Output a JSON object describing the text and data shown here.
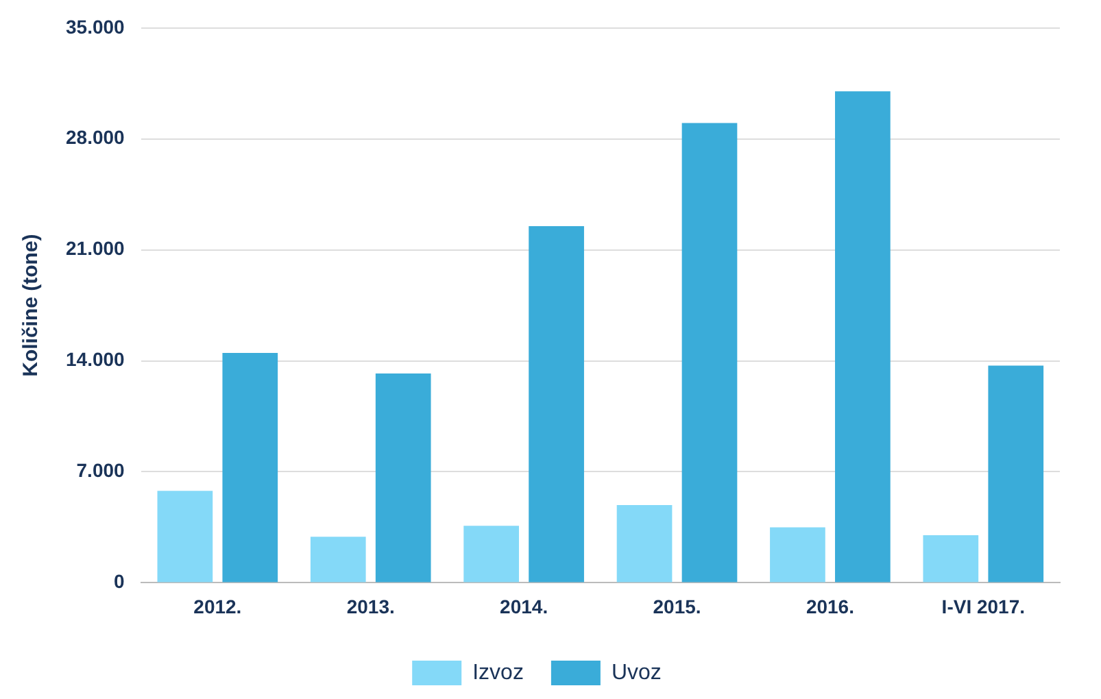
{
  "chart_data": {
    "type": "bar",
    "ylabel": "Količine (tone)",
    "categories": [
      "2012.",
      "2013.",
      "2014.",
      "2015.",
      "2016.",
      "I-VI 2017."
    ],
    "series": [
      {
        "name": "Izvoz",
        "color": "#84d9f8",
        "values": [
          5800,
          2900,
          3600,
          4900,
          3500,
          3000
        ]
      },
      {
        "name": "Uvoz",
        "color": "#3aacd9",
        "values": [
          14500,
          13200,
          22500,
          29000,
          31000,
          13700
        ]
      }
    ],
    "ylim": [
      0,
      35000
    ],
    "yticks": [
      {
        "value": 0,
        "label": "0"
      },
      {
        "value": 7000,
        "label": "7.000"
      },
      {
        "value": 14000,
        "label": "14.000"
      },
      {
        "value": 21000,
        "label": "21.000"
      },
      {
        "value": 28000,
        "label": "28.000"
      },
      {
        "value": 35000,
        "label": "35.000"
      }
    ],
    "grid": "y",
    "legend": "bottom"
  }
}
